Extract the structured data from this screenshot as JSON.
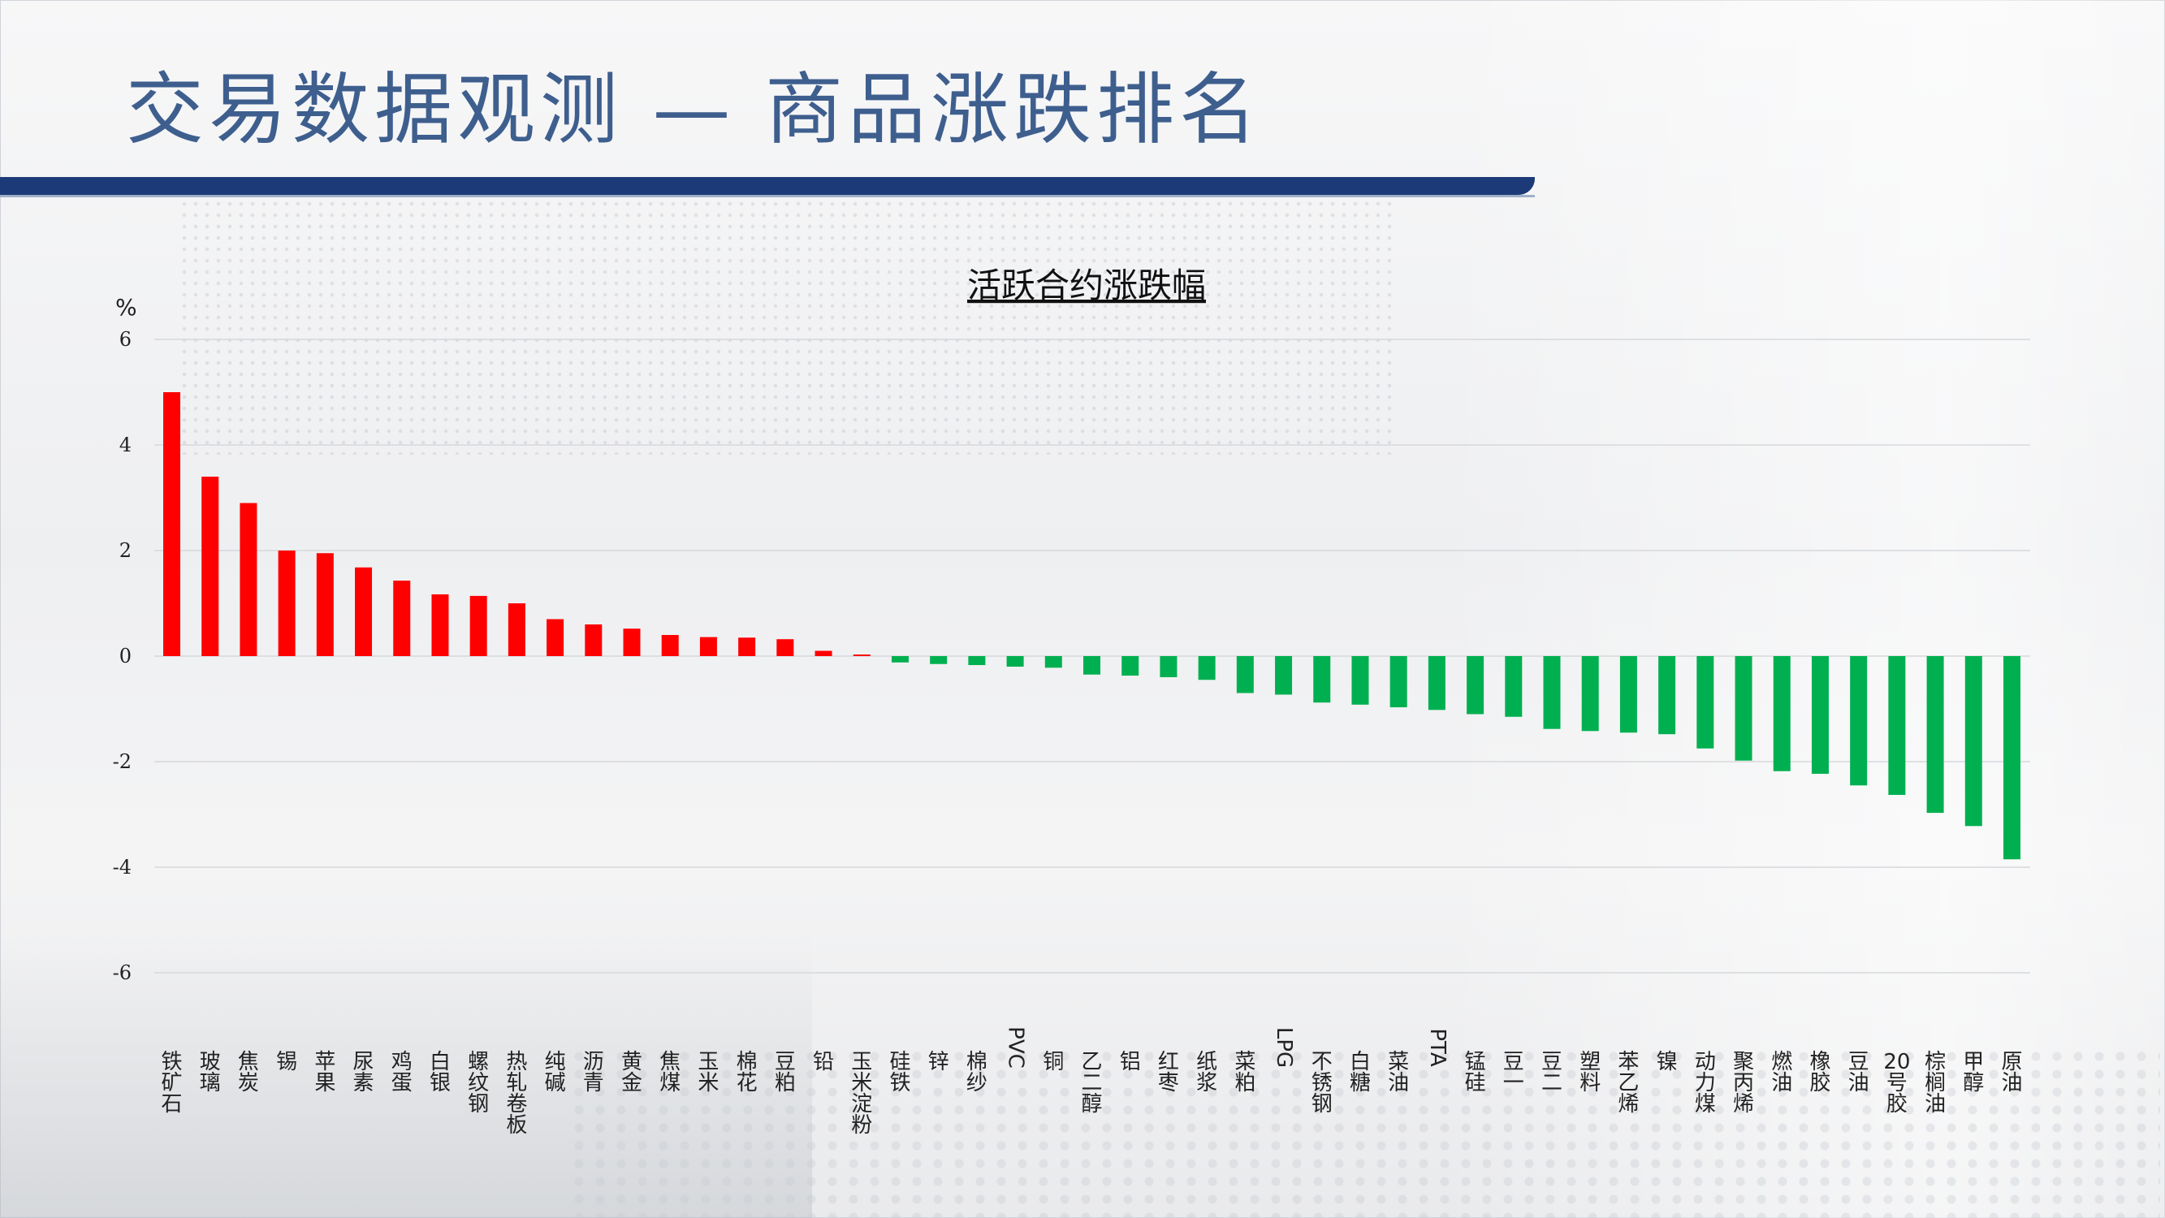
{
  "page": {
    "title": "交易数据观测 — 商品涨跌排名"
  },
  "colors": {
    "up": "#ff0000",
    "down": "#00b050",
    "title": "#3e5f8e",
    "bar": "#1d3a78"
  },
  "chart_data": {
    "type": "bar",
    "title": "活跃合约涨跌幅",
    "ylabel": "%",
    "ylim": [
      -6,
      6
    ],
    "yticks": [
      6,
      4,
      2,
      0,
      -2,
      -4,
      -6
    ],
    "grid": true,
    "categories": [
      "铁矿石",
      "玻璃",
      "焦炭",
      "锡",
      "苹果",
      "尿素",
      "鸡蛋",
      "白银",
      "螺纹钢",
      "热轧卷板",
      "纯碱",
      "沥青",
      "黄金",
      "焦煤",
      "玉米",
      "棉花",
      "豆粕",
      "铅",
      "玉米淀粉",
      "硅铁",
      "锌",
      "棉纱",
      "PVC",
      "铜",
      "乙二醇",
      "铝",
      "红枣",
      "纸浆",
      "菜粕",
      "LPG",
      "不锈钢",
      "白糖",
      "菜油",
      "PTA",
      "锰硅",
      "豆一",
      "豆二",
      "塑料",
      "苯乙烯",
      "镍",
      "动力煤",
      "聚丙烯",
      "燃油",
      "橡胶",
      "豆油",
      "20号胶",
      "棕榈油",
      "甲醇",
      "原油"
    ],
    "values": [
      5.0,
      3.4,
      2.9,
      2.0,
      1.95,
      1.68,
      1.43,
      1.17,
      1.14,
      1.0,
      0.7,
      0.6,
      0.52,
      0.4,
      0.36,
      0.35,
      0.32,
      0.1,
      0.03,
      -0.12,
      -0.15,
      -0.17,
      -0.2,
      -0.22,
      -0.35,
      -0.37,
      -0.4,
      -0.45,
      -0.7,
      -0.73,
      -0.88,
      -0.92,
      -0.97,
      -1.02,
      -1.1,
      -1.15,
      -1.38,
      -1.42,
      -1.45,
      -1.48,
      -1.75,
      -1.98,
      -2.18,
      -2.23,
      -2.45,
      -2.63,
      -2.97,
      -3.22,
      -3.85
    ]
  }
}
